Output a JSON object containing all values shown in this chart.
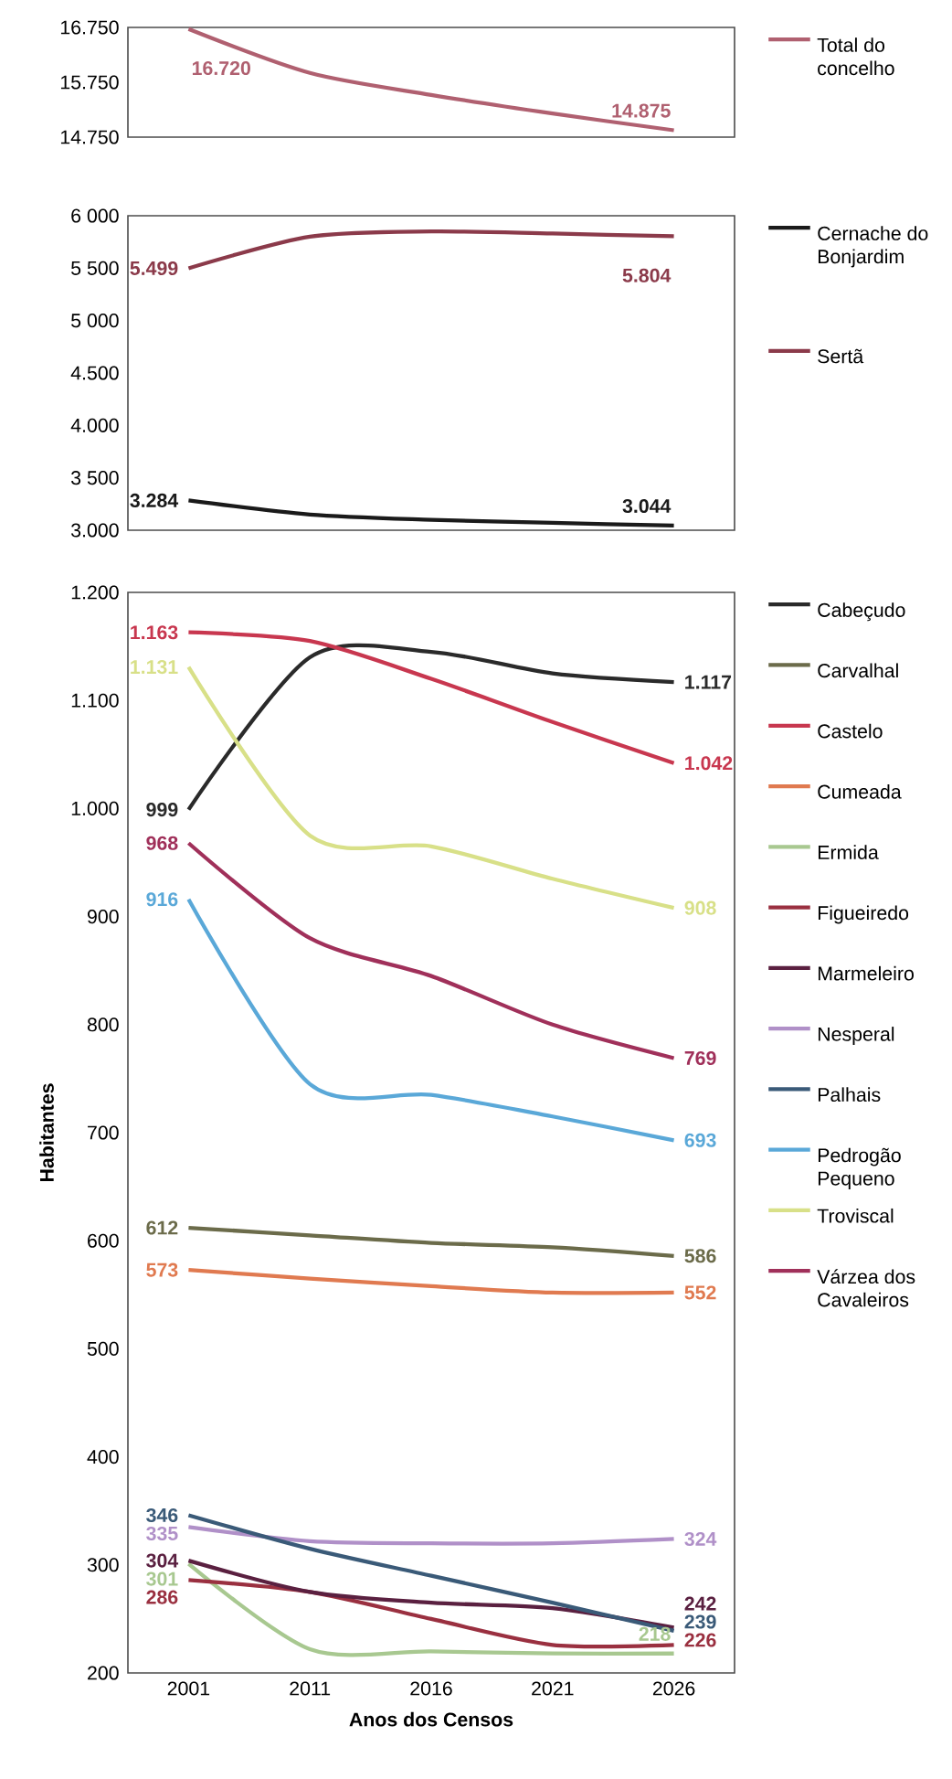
{
  "chart_data": [
    {
      "type": "line",
      "categories": [
        "2001",
        "2011",
        "2016",
        "2021",
        "2026"
      ],
      "ylim": [
        14750,
        16750
      ],
      "yticks": [
        {
          "value": 14750,
          "label": "14.750"
        },
        {
          "value": 15750,
          "label": "15.750"
        },
        {
          "value": 16750,
          "label": "16.750"
        }
      ],
      "tick_labels": "y",
      "legend": "right",
      "series": [
        {
          "name": "Total do concelho",
          "color": "#b06070",
          "values": [
            16720,
            15920,
            15520,
            15180,
            14875
          ],
          "value_labels": [
            "16.720",
            null,
            null,
            null,
            "14.875"
          ]
        }
      ]
    },
    {
      "type": "line",
      "categories": [
        "2001",
        "2011",
        "2016",
        "2021",
        "2026"
      ],
      "ylim": [
        3000,
        6000
      ],
      "yticks": [
        {
          "value": 3000,
          "label": "3.000"
        },
        {
          "value": 3500,
          "label": "3 500"
        },
        {
          "value": 4000,
          "label": "4.000"
        },
        {
          "value": 4500,
          "label": "4.500"
        },
        {
          "value": 5000,
          "label": "5 000"
        },
        {
          "value": 5500,
          "label": "5 500"
        },
        {
          "value": 6000,
          "label": "6 000"
        }
      ],
      "tick_labels": "y",
      "legend": "right",
      "series": [
        {
          "name": "Cernache do Bonjardim",
          "color": "#1a1a1a",
          "values": [
            3284,
            3150,
            3100,
            3070,
            3044
          ],
          "value_labels": [
            "3.284",
            null,
            null,
            null,
            "3.044"
          ]
        },
        {
          "name": "Sertã",
          "color": "#8b3a4a",
          "values": [
            5499,
            5800,
            5850,
            5830,
            5804
          ],
          "value_labels": [
            "5.499",
            null,
            null,
            null,
            "5.804"
          ]
        }
      ]
    },
    {
      "type": "line",
      "categories": [
        "2001",
        "2011",
        "2016",
        "2021",
        "2026"
      ],
      "xlabel": "Anos dos Censos",
      "ylabel": "Habitantes",
      "ylim": [
        200,
        1200
      ],
      "yticks": [
        200,
        300,
        400,
        500,
        600,
        700,
        800,
        900,
        {
          "value": 1000,
          "label": "1.000"
        },
        {
          "value": 1100,
          "label": "1.100"
        },
        {
          "value": 1200,
          "label": "1.200"
        }
      ],
      "legend": "right",
      "series": [
        {
          "name": "Cabeçudo",
          "color": "#2a2a2a",
          "values": [
            999,
            1140,
            1145,
            1125,
            1117
          ],
          "value_labels": [
            "999",
            null,
            null,
            null,
            "1.117"
          ]
        },
        {
          "name": "Carvalhal",
          "color": "#6b6b4a",
          "values": [
            612,
            605,
            598,
            594,
            586
          ],
          "value_labels": [
            "612",
            null,
            null,
            null,
            "586"
          ]
        },
        {
          "name": "Castelo",
          "color": "#c8374f",
          "values": [
            1163,
            1155,
            1120,
            1080,
            1042
          ],
          "value_labels": [
            "1.163",
            null,
            null,
            null,
            "1.042"
          ]
        },
        {
          "name": "Cumeada",
          "color": "#e07a50",
          "values": [
            573,
            565,
            558,
            552,
            552
          ],
          "value_labels": [
            "573",
            null,
            null,
            null,
            "552"
          ]
        },
        {
          "name": "Ermida",
          "color": "#a8c890",
          "values": [
            301,
            222,
            220,
            218,
            218
          ],
          "value_labels": [
            "301",
            null,
            null,
            null,
            "218"
          ]
        },
        {
          "name": "Figueiredo",
          "color": "#9a3040",
          "values": [
            286,
            275,
            250,
            226,
            226
          ],
          "value_labels": [
            "286",
            null,
            null,
            null,
            "226"
          ]
        },
        {
          "name": "Marmeleiro",
          "color": "#5a2040",
          "values": [
            304,
            275,
            265,
            260,
            242
          ],
          "value_labels": [
            "304",
            null,
            null,
            null,
            "242"
          ]
        },
        {
          "name": "Nesperal",
          "color": "#b090c8",
          "values": [
            335,
            322,
            320,
            320,
            324
          ],
          "value_labels": [
            "335",
            null,
            null,
            null,
            "324"
          ]
        },
        {
          "name": "Palhais",
          "color": "#3a5a78",
          "values": [
            346,
            315,
            290,
            265,
            239
          ],
          "value_labels": [
            "346",
            null,
            null,
            null,
            "239"
          ]
        },
        {
          "name": "Pedrogão Pequeno",
          "color": "#5aa8d8",
          "values": [
            916,
            745,
            735,
            715,
            693
          ],
          "value_labels": [
            "916",
            null,
            null,
            null,
            "693"
          ]
        },
        {
          "name": "Troviscal",
          "color": "#d8e088",
          "values": [
            1131,
            975,
            965,
            935,
            908
          ],
          "value_labels": [
            "1.131",
            null,
            null,
            null,
            "908"
          ]
        },
        {
          "name": "Várzea dos Cavaleiros",
          "color": "#a0305a",
          "values": [
            968,
            880,
            845,
            800,
            769
          ],
          "value_labels": [
            "968",
            null,
            null,
            null,
            "769"
          ]
        }
      ]
    }
  ]
}
